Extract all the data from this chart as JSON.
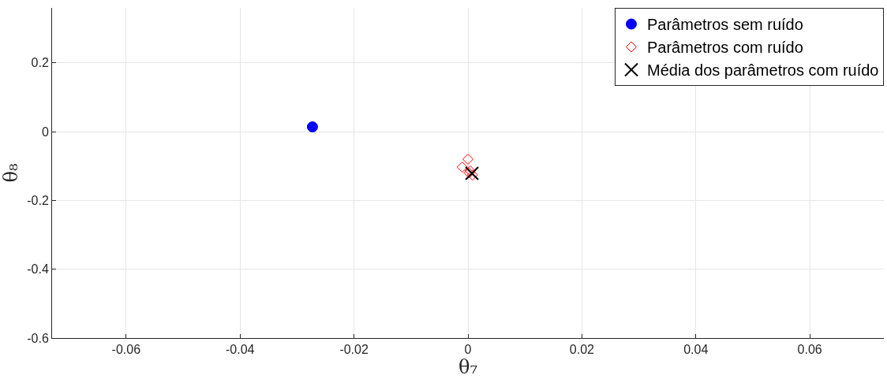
{
  "chart_data": {
    "type": "scatter",
    "xlabel": "θ₇",
    "ylabel": "θ₈",
    "xlim": [
      -0.073,
      0.073
    ],
    "ylim": [
      -0.6,
      0.36
    ],
    "xticks": [
      -0.06,
      -0.04,
      -0.02,
      0,
      0.02,
      0.04,
      0.06
    ],
    "yticks": [
      -0.6,
      -0.4,
      -0.2,
      0,
      0.2
    ],
    "grid": true,
    "legend": "top right",
    "series": [
      {
        "name": "Parâmetros sem ruído",
        "color": "#0000ff",
        "marker": "circle",
        "x": [
          -0.0273
        ],
        "values": [
          0.014
        ]
      },
      {
        "name": "Parâmetros com ruído",
        "color": "#ff0000",
        "marker": "diamond",
        "x": [
          0.0,
          -0.001,
          0.0004,
          0.0008,
          0.0002
        ],
        "values": [
          -0.08,
          -0.103,
          -0.114,
          -0.126,
          -0.12
        ]
      },
      {
        "name": "Média dos parâmetros com ruído",
        "color": "#000000",
        "marker": "cross",
        "x": [
          0.0007
        ],
        "values": [
          -0.121
        ]
      }
    ]
  }
}
